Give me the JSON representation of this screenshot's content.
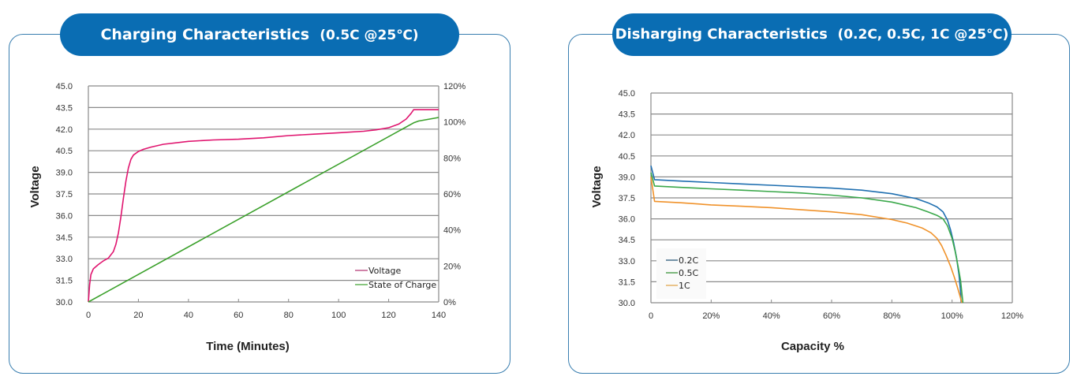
{
  "panels": {
    "left": {
      "title_main": "Charging Characteristics",
      "title_sub": "(0.5C @25℃)"
    },
    "right": {
      "title_main": "Disharging Characteristics",
      "title_sub": "(0.2C, 0.5C, 1C @25℃)"
    }
  },
  "colors": {
    "pill": "#0a6db3",
    "border": "#3a7fb0",
    "grid": "#888888",
    "voltage": "#e0156f",
    "soc": "#3aa02a",
    "c02": "#1f6fb0",
    "c05": "#3aa84a",
    "c1": "#f0922a"
  },
  "chart_data": [
    {
      "type": "line",
      "title": "Charging Characteristics (0.5C @25℃)",
      "xlabel": "Time (Minutes)",
      "ylabel": "Voltage",
      "y2label": "",
      "xlim": [
        0,
        140
      ],
      "ylim": [
        30.0,
        45.0
      ],
      "y2lim": [
        0,
        120
      ],
      "x_ticks": [
        "0",
        "20",
        "40",
        "60",
        "80",
        "100",
        "120",
        "140"
      ],
      "y_ticks": [
        "30.0",
        "31.5",
        "33.0",
        "34.5",
        "36.0",
        "37.5",
        "39.0",
        "40.5",
        "42.0",
        "43.5",
        "45.0"
      ],
      "y2_ticks": [
        "0%",
        "20%",
        "40%",
        "60%",
        "80%",
        "100%",
        "120%"
      ],
      "grid": true,
      "legend": "bottom-right",
      "series": [
        {
          "name": "Voltage",
          "axis": "left",
          "x": [
            0,
            0.5,
            1,
            2,
            4,
            6,
            8,
            10,
            11,
            12,
            13,
            14,
            15,
            16,
            17,
            18,
            20,
            22,
            25,
            30,
            40,
            50,
            60,
            70,
            80,
            90,
            100,
            110,
            115,
            120,
            124,
            127,
            129,
            130,
            140
          ],
          "y": [
            30.0,
            31.2,
            31.9,
            32.3,
            32.6,
            32.85,
            33.05,
            33.5,
            34.0,
            34.8,
            35.9,
            37.2,
            38.4,
            39.3,
            39.9,
            40.2,
            40.45,
            40.6,
            40.75,
            40.95,
            41.15,
            41.25,
            41.3,
            41.4,
            41.55,
            41.65,
            41.75,
            41.85,
            41.95,
            42.1,
            42.35,
            42.7,
            43.1,
            43.35,
            43.35
          ]
        },
        {
          "name": "State of Charge",
          "axis": "right",
          "x": [
            0,
            130,
            132,
            140
          ],
          "y": [
            0,
            99.5,
            100.5,
            102.5
          ]
        }
      ]
    },
    {
      "type": "line",
      "title": "Disharging Characteristics (0.2C, 0.5C, 1C @25℃)",
      "xlabel": "Capacity %",
      "ylabel": "Voltage",
      "xlim": [
        0,
        120
      ],
      "ylim": [
        30.0,
        45.0
      ],
      "x_ticks": [
        "0",
        "20%",
        "40%",
        "60%",
        "80%",
        "100%",
        "120%"
      ],
      "y_ticks": [
        "30.0",
        "31.5",
        "33.0",
        "34.5",
        "36.0",
        "37.5",
        "39.0",
        "40.5",
        "42.0",
        "43.5",
        "45.0"
      ],
      "grid": true,
      "legend": "bottom-left",
      "series": [
        {
          "name": "0.2C",
          "x": [
            0,
            1.2,
            10,
            20,
            30,
            40,
            50,
            60,
            70,
            80,
            88,
            92,
            95,
            97,
            98.5,
            99.5,
            100.5,
            101.5,
            102.3,
            102.8,
            103.0
          ],
          "y": [
            39.8,
            38.8,
            38.7,
            38.6,
            38.5,
            38.4,
            38.3,
            38.2,
            38.05,
            37.8,
            37.45,
            37.15,
            36.85,
            36.5,
            35.9,
            35.2,
            34.3,
            33.2,
            32.0,
            30.8,
            30.0
          ]
        },
        {
          "name": "0.5C",
          "x": [
            0,
            1.2,
            10,
            20,
            30,
            40,
            50,
            60,
            70,
            80,
            88,
            92,
            95,
            97,
            98.5,
            100,
            101,
            102,
            102.8,
            103.3,
            103.6
          ],
          "y": [
            39.3,
            38.35,
            38.25,
            38.15,
            38.05,
            37.95,
            37.85,
            37.7,
            37.5,
            37.2,
            36.8,
            36.5,
            36.25,
            36.0,
            35.5,
            34.6,
            33.7,
            32.6,
            31.6,
            30.6,
            30.0
          ]
        },
        {
          "name": "1C",
          "x": [
            0,
            1.2,
            10,
            20,
            30,
            40,
            50,
            60,
            70,
            80,
            85,
            90,
            93,
            95,
            96.5,
            98,
            99.5,
            100.8,
            101.8,
            102.6,
            103.2
          ],
          "y": [
            39.0,
            37.25,
            37.15,
            37.0,
            36.9,
            36.8,
            36.65,
            36.5,
            36.3,
            35.95,
            35.7,
            35.35,
            35.0,
            34.6,
            34.1,
            33.4,
            32.6,
            31.8,
            31.1,
            30.5,
            30.0
          ]
        }
      ]
    }
  ]
}
